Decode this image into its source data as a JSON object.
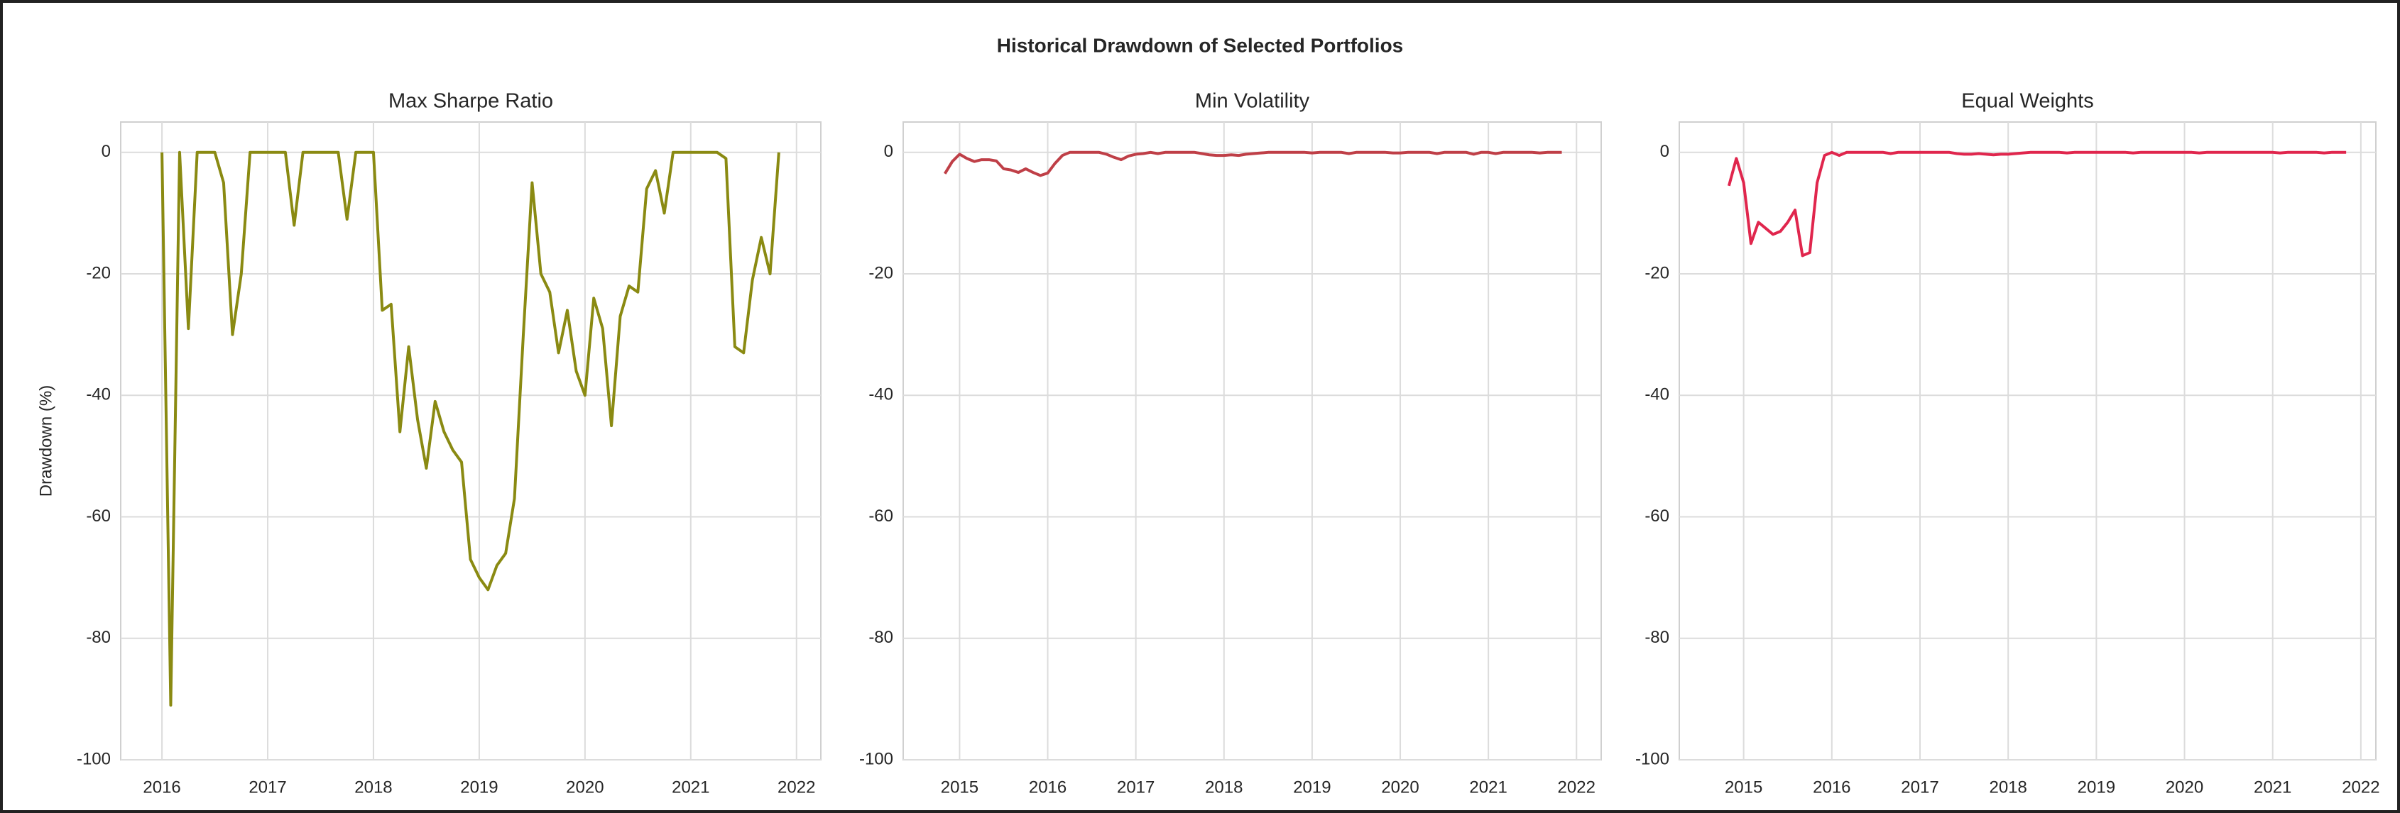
{
  "title": "Historical Drawdown of Selected Portfolios",
  "chart_data": [
    {
      "type": "line",
      "title": "Max Sharpe Ratio",
      "ylabel": "Drawdown (%)",
      "color": "#8a8a12",
      "grid": true,
      "xlim": [
        2015.61,
        2022.23
      ],
      "ylim": [
        -100,
        5
      ],
      "xticks": [
        2016,
        2017,
        2018,
        2019,
        2020,
        2021,
        2022
      ],
      "yticks": [
        0,
        -20,
        -40,
        -60,
        -80,
        -100
      ],
      "x": [
        2016,
        2016.083,
        2016.167,
        2016.25,
        2016.333,
        2016.417,
        2016.5,
        2016.583,
        2016.667,
        2016.75,
        2016.833,
        2016.917,
        2017,
        2017.083,
        2017.167,
        2017.25,
        2017.333,
        2017.417,
        2017.5,
        2017.583,
        2017.667,
        2017.75,
        2017.833,
        2017.917,
        2018,
        2018.083,
        2018.167,
        2018.25,
        2018.333,
        2018.417,
        2018.5,
        2018.583,
        2018.667,
        2018.75,
        2018.833,
        2018.917,
        2019,
        2019.083,
        2019.167,
        2019.25,
        2019.333,
        2019.417,
        2019.5,
        2019.583,
        2019.667,
        2019.75,
        2019.833,
        2019.917,
        2020,
        2020.083,
        2020.167,
        2020.25,
        2020.333,
        2020.417,
        2020.5,
        2020.583,
        2020.667,
        2020.75,
        2020.833,
        2020.917,
        2021,
        2021.083,
        2021.167,
        2021.25,
        2021.333,
        2021.417,
        2021.5,
        2021.583,
        2021.667,
        2021.75,
        2021.833
      ],
      "values": [
        0,
        -91,
        0,
        -29,
        0,
        0,
        0,
        -5,
        -30,
        -20,
        0,
        0,
        0,
        0,
        0,
        -12,
        0,
        0,
        0,
        0,
        0,
        -11,
        0,
        0,
        0,
        -26,
        -25,
        -46,
        -32,
        -44,
        -52,
        -41,
        -46,
        -49,
        -51,
        -67,
        -70,
        -72,
        -68,
        -66,
        -57,
        -30,
        -5,
        -20,
        -23,
        -33,
        -26,
        -36,
        -40,
        -24,
        -29,
        -45,
        -27,
        -22,
        -23,
        -6,
        -3,
        -10,
        0,
        0,
        0,
        0,
        0,
        0,
        -1,
        -32,
        -33,
        -21,
        -14,
        -20,
        0
      ]
    },
    {
      "type": "line",
      "title": "Min Volatility",
      "color": "#bf3f47",
      "grid": true,
      "xlim": [
        2014.36,
        2022.28
      ],
      "ylim": [
        -100,
        5
      ],
      "xticks": [
        2015,
        2016,
        2017,
        2018,
        2019,
        2020,
        2021,
        2022
      ],
      "yticks": [
        0,
        -20,
        -40,
        -60,
        -80,
        -100
      ],
      "x": [
        2014.833,
        2014.917,
        2015,
        2015.083,
        2015.167,
        2015.25,
        2015.333,
        2015.417,
        2015.5,
        2015.583,
        2015.667,
        2015.75,
        2015.833,
        2015.917,
        2016,
        2016.083,
        2016.167,
        2016.25,
        2016.333,
        2016.417,
        2016.5,
        2016.583,
        2016.667,
        2016.75,
        2016.833,
        2016.917,
        2017,
        2017.083,
        2017.167,
        2017.25,
        2017.333,
        2017.417,
        2017.5,
        2017.583,
        2017.667,
        2017.75,
        2017.833,
        2017.917,
        2018,
        2018.083,
        2018.167,
        2018.25,
        2018.333,
        2018.417,
        2018.5,
        2018.583,
        2018.667,
        2018.75,
        2018.833,
        2018.917,
        2019,
        2019.083,
        2019.167,
        2019.25,
        2019.333,
        2019.417,
        2019.5,
        2019.583,
        2019.667,
        2019.75,
        2019.833,
        2019.917,
        2020,
        2020.083,
        2020.167,
        2020.25,
        2020.333,
        2020.417,
        2020.5,
        2020.583,
        2020.667,
        2020.75,
        2020.833,
        2020.917,
        2021,
        2021.083,
        2021.167,
        2021.25,
        2021.333,
        2021.417,
        2021.5,
        2021.583,
        2021.667,
        2021.75,
        2021.833
      ],
      "values": [
        -3.5,
        -1.5,
        -0.3,
        -1,
        -1.5,
        -1.2,
        -1.2,
        -1.4,
        -2.7,
        -2.9,
        -3.3,
        -2.7,
        -3.3,
        -3.8,
        -3.4,
        -1.8,
        -0.5,
        0,
        0,
        0,
        0,
        0,
        -0.3,
        -0.8,
        -1.2,
        -0.6,
        -0.3,
        -0.2,
        0,
        -0.2,
        0,
        0,
        0,
        0,
        0,
        -0.2,
        -0.4,
        -0.5,
        -0.5,
        -0.4,
        -0.5,
        -0.3,
        -0.2,
        -0.1,
        0,
        0,
        0,
        0,
        0,
        0,
        -0.1,
        0,
        0,
        0,
        0,
        -0.2,
        0,
        0,
        0,
        0,
        0,
        -0.1,
        -0.1,
        0,
        0,
        0,
        0,
        -0.2,
        0,
        0,
        0,
        0,
        -0.3,
        0,
        0,
        -0.2,
        0,
        0,
        0,
        0,
        0,
        -0.1,
        0,
        0,
        0
      ]
    },
    {
      "type": "line",
      "title": "Equal Weights",
      "color": "#e0264d",
      "grid": true,
      "xlim": [
        2014.27,
        2022.17
      ],
      "ylim": [
        -100,
        5
      ],
      "xticks": [
        2015,
        2016,
        2017,
        2018,
        2019,
        2020,
        2021,
        2022
      ],
      "yticks": [
        0,
        -20,
        -40,
        -60,
        -80,
        -100
      ],
      "x": [
        2014.833,
        2014.917,
        2015,
        2015.083,
        2015.167,
        2015.25,
        2015.333,
        2015.417,
        2015.5,
        2015.583,
        2015.667,
        2015.75,
        2015.833,
        2015.917,
        2016,
        2016.083,
        2016.167,
        2016.25,
        2016.333,
        2016.417,
        2016.5,
        2016.583,
        2016.667,
        2016.75,
        2016.833,
        2016.917,
        2017,
        2017.083,
        2017.167,
        2017.25,
        2017.333,
        2017.417,
        2017.5,
        2017.583,
        2017.667,
        2017.75,
        2017.833,
        2017.917,
        2018,
        2018.083,
        2018.167,
        2018.25,
        2018.333,
        2018.417,
        2018.5,
        2018.583,
        2018.667,
        2018.75,
        2018.833,
        2018.917,
        2019,
        2019.083,
        2019.167,
        2019.25,
        2019.333,
        2019.417,
        2019.5,
        2019.583,
        2019.667,
        2019.75,
        2019.833,
        2019.917,
        2020,
        2020.083,
        2020.167,
        2020.25,
        2020.333,
        2020.417,
        2020.5,
        2020.583,
        2020.667,
        2020.75,
        2020.833,
        2020.917,
        2021,
        2021.083,
        2021.167,
        2021.25,
        2021.333,
        2021.417,
        2021.5,
        2021.583,
        2021.667,
        2021.75,
        2021.833
      ],
      "values": [
        -5.5,
        -1,
        -5,
        -15,
        -11.5,
        -12.5,
        -13.5,
        -13,
        -11.5,
        -9.5,
        -17,
        -16.5,
        -5,
        -0.5,
        0,
        -0.5,
        0,
        0,
        0,
        0,
        0,
        0,
        -0.2,
        0,
        0,
        0,
        0,
        0,
        0,
        0,
        0,
        -0.2,
        -0.3,
        -0.3,
        -0.2,
        -0.3,
        -0.4,
        -0.3,
        -0.3,
        -0.2,
        -0.1,
        0,
        0,
        0,
        0,
        0,
        -0.1,
        0,
        0,
        0,
        0,
        0,
        0,
        0,
        0,
        -0.1,
        0,
        0,
        0,
        0,
        0,
        0,
        0,
        0,
        -0.1,
        0,
        0,
        0,
        0,
        0,
        0,
        0,
        0,
        0,
        0,
        -0.1,
        0,
        0,
        0,
        0,
        0,
        -0.1,
        0,
        0,
        0
      ]
    }
  ]
}
